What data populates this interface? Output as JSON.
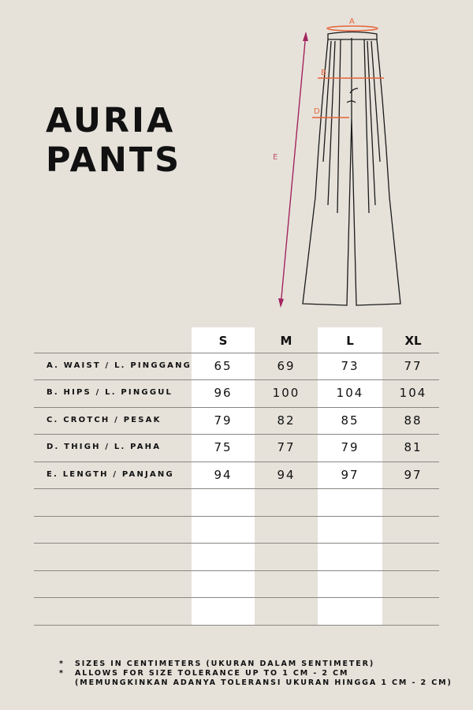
{
  "title": {
    "line1": "AURIA",
    "line2": "PANTS"
  },
  "diagram_labels": {
    "a": "A",
    "b": "B",
    "d": "D",
    "e": "E"
  },
  "colors": {
    "background": "#e6e2da",
    "measure_orange": "#e8633a",
    "length_magenta": "#a3245f",
    "highlight_column": "#ffffff"
  },
  "table": {
    "sizes": [
      "S",
      "M",
      "L",
      "XL"
    ],
    "rows": [
      {
        "label": "A. WAIST / L. PINGGANG",
        "values": [
          "65",
          "69",
          "73",
          "77"
        ]
      },
      {
        "label": "B. HIPS / L. PINGGUL",
        "values": [
          "96",
          "100",
          "104",
          "104"
        ]
      },
      {
        "label": "C. CROTCH / PESAK",
        "values": [
          "79",
          "82",
          "85",
          "88"
        ]
      },
      {
        "label": "D. THIGH / L. PAHA",
        "values": [
          "75",
          "77",
          "79",
          "81"
        ]
      },
      {
        "label": "E. LENGTH / PANJANG",
        "values": [
          "94",
          "94",
          "97",
          "97"
        ]
      }
    ]
  },
  "notes": {
    "bullet": "*",
    "line1": "SIZES IN CENTIMETERS  (UKURAN DALAM SENTIMETER)",
    "line2": "ALLOWS FOR SIZE TOLERANCE UP TO 1 CM - 2 CM",
    "line3": "(MEMUNGKINKAN ADANYA TOLERANSI UKURAN HINGGA 1 CM - 2 CM)"
  }
}
